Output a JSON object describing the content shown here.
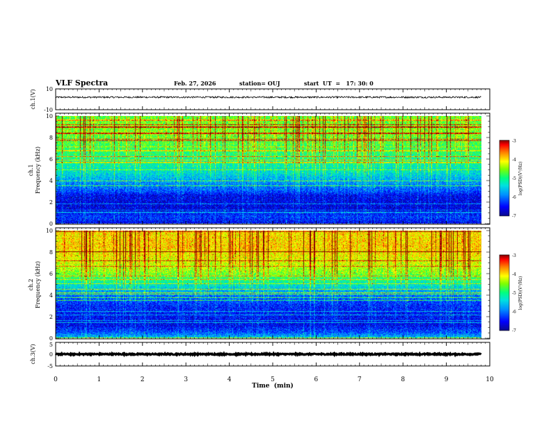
{
  "header": {
    "title": "VLF Spectra",
    "date": "Feb. 27, 2026",
    "station": "station= OUJ",
    "start_ut": "start  UT  =   17: 30: 0"
  },
  "colors": {
    "waveform": "#000000",
    "background": "#ffffff",
    "colormap": [
      "#0a0a8c",
      "#0000ff",
      "#0088ff",
      "#00e0e0",
      "#00ff80",
      "#80ff00",
      "#ffff00",
      "#ff8000",
      "#ff0000",
      "#800000"
    ]
  },
  "chart_data": [
    {
      "type": "line",
      "panel": "ch1-waveform",
      "ylabel": "ch.1(V)",
      "ylim": [
        -10,
        10
      ],
      "yticks": [
        "10",
        "-10"
      ],
      "xlim": [
        0,
        9.8
      ],
      "baseline": 2,
      "amplitude": 0.8
    },
    {
      "type": "heatmap",
      "panel": "ch1-spectrogram",
      "ylabel": "ch.1 Frequency (kHz)",
      "ylabel_lines": [
        "ch.1",
        "Frequency (kHz)"
      ],
      "ylim": [
        0,
        10
      ],
      "yticks": [
        "0",
        "2",
        "4",
        "6",
        "8",
        "10"
      ],
      "xlim": [
        0,
        9.8
      ],
      "colorbar": {
        "label": "log(PSD)(V²/Hz)",
        "range": [
          -7,
          -3
        ],
        "ticks": [
          "-3",
          "-4",
          "-5",
          "-6",
          "-7"
        ]
      },
      "profile_khz": [
        [
          0,
          -6.6
        ],
        [
          0.6,
          -6.3
        ],
        [
          1.2,
          -6.7
        ],
        [
          2.6,
          -6.6
        ],
        [
          3.0,
          -6.2
        ],
        [
          4.0,
          -5.8
        ],
        [
          4.8,
          -5.4
        ],
        [
          6.0,
          -5.1
        ],
        [
          7.0,
          -4.9
        ],
        [
          8.5,
          -4.6
        ],
        [
          10,
          -4.7
        ]
      ]
    },
    {
      "type": "heatmap",
      "panel": "ch2-spectrogram",
      "ylabel": "ch.2 Frequency (kHz)",
      "ylabel_lines": [
        "ch.2",
        "Frequency (kHz)"
      ],
      "ylim": [
        0,
        10
      ],
      "yticks": [
        "0",
        "2",
        "4",
        "6",
        "8",
        "10"
      ],
      "xlim": [
        0,
        9.8
      ],
      "colorbar": {
        "label": "log(PSD)(V²/Hz)",
        "range": [
          -7,
          -3
        ],
        "ticks": [
          "-3",
          "-4",
          "-5",
          "-6",
          "-7"
        ]
      },
      "profile_khz": [
        [
          0,
          -5.6
        ],
        [
          0.5,
          -6.2
        ],
        [
          1.2,
          -6.6
        ],
        [
          3.0,
          -6.4
        ],
        [
          4.0,
          -6.0
        ],
        [
          5.2,
          -5.2
        ],
        [
          6.0,
          -4.6
        ],
        [
          7.0,
          -4.3
        ],
        [
          8.5,
          -4.0
        ],
        [
          10,
          -4.1
        ]
      ]
    },
    {
      "type": "line",
      "panel": "ch3-waveform",
      "ylabel": "ch.3(V)",
      "ylim": [
        -5,
        5
      ],
      "yticks": [
        "5",
        "0",
        "-5"
      ],
      "xlim": [
        0,
        9.8
      ],
      "baseline": 0,
      "amplitude": 0.25
    }
  ],
  "xaxis": {
    "label": "Time  (min)",
    "range": [
      0,
      10
    ],
    "ticks": [
      "0",
      "1",
      "2",
      "3",
      "4",
      "5",
      "6",
      "7",
      "8",
      "9",
      "10"
    ]
  }
}
